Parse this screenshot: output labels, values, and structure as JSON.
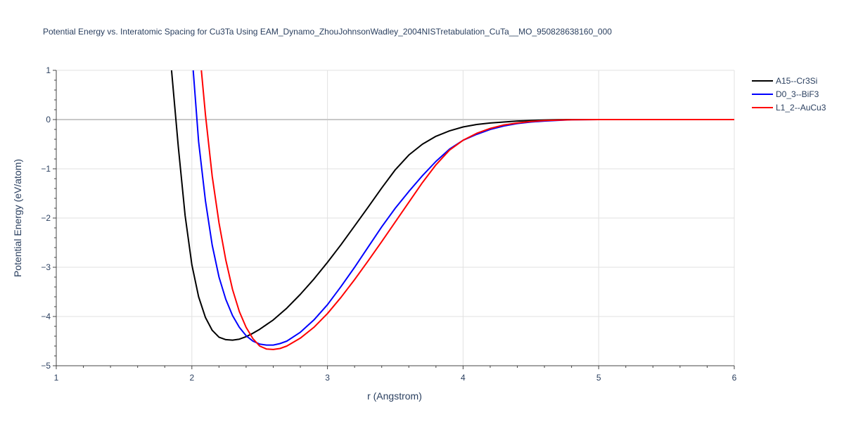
{
  "chart_data": {
    "type": "line",
    "title": "Potential Energy vs. Interatomic Spacing for Cu3Ta Using EAM_Dynamo_ZhouJohnsonWadley_2004NISTretabulation_CuTa__MO_950828638160_000",
    "xlabel": "r (Angstrom)",
    "ylabel": "Potential Energy (eV/atom)",
    "xlim": [
      1,
      6
    ],
    "ylim": [
      -5,
      1
    ],
    "xticks": [
      1,
      2,
      3,
      4,
      5,
      6
    ],
    "yticks": [
      1,
      0,
      -1,
      -2,
      -3,
      -4,
      -5
    ],
    "xtick_labels": [
      "1",
      "2",
      "3",
      "4",
      "5",
      "6"
    ],
    "ytick_labels": [
      "1",
      "0",
      "−1",
      "−2",
      "−3",
      "−4",
      "−5"
    ],
    "grid": true,
    "legend_position": "top-right",
    "series": [
      {
        "name": "A15--Cr3Si",
        "color": "#000000",
        "x": [
          1.85,
          1.9,
          1.95,
          2.0,
          2.05,
          2.1,
          2.15,
          2.2,
          2.25,
          2.3,
          2.35,
          2.4,
          2.45,
          2.5,
          2.6,
          2.7,
          2.8,
          2.9,
          3.0,
          3.1,
          3.2,
          3.3,
          3.4,
          3.5,
          3.6,
          3.7,
          3.8,
          3.9,
          4.0,
          4.1,
          4.2,
          4.3,
          4.4,
          4.5,
          4.6,
          4.7,
          4.8,
          5.0,
          5.5,
          6.0
        ],
        "y": [
          1.0,
          -0.55,
          -1.95,
          -2.95,
          -3.6,
          -4.02,
          -4.28,
          -4.42,
          -4.47,
          -4.48,
          -4.46,
          -4.41,
          -4.34,
          -4.26,
          -4.07,
          -3.83,
          -3.55,
          -3.24,
          -2.9,
          -2.54,
          -2.16,
          -1.78,
          -1.39,
          -1.02,
          -0.72,
          -0.5,
          -0.34,
          -0.23,
          -0.15,
          -0.1,
          -0.07,
          -0.05,
          -0.03,
          -0.02,
          -0.01,
          -0.005,
          0.0,
          0.0,
          0.0,
          0.0
        ]
      },
      {
        "name": "D0_3--BiF3",
        "color": "#0000ff",
        "x": [
          2.01,
          2.05,
          2.1,
          2.15,
          2.2,
          2.25,
          2.3,
          2.35,
          2.4,
          2.45,
          2.5,
          2.55,
          2.6,
          2.65,
          2.7,
          2.8,
          2.9,
          3.0,
          3.1,
          3.2,
          3.3,
          3.4,
          3.5,
          3.6,
          3.7,
          3.8,
          3.9,
          4.0,
          4.1,
          4.2,
          4.3,
          4.4,
          4.5,
          4.6,
          4.7,
          4.8,
          5.0,
          5.5,
          6.0
        ],
        "y": [
          1.0,
          -0.45,
          -1.65,
          -2.55,
          -3.2,
          -3.65,
          -3.98,
          -4.22,
          -4.39,
          -4.5,
          -4.56,
          -4.58,
          -4.58,
          -4.55,
          -4.5,
          -4.32,
          -4.07,
          -3.76,
          -3.39,
          -3.0,
          -2.59,
          -2.18,
          -1.8,
          -1.46,
          -1.14,
          -0.85,
          -0.6,
          -0.42,
          -0.3,
          -0.2,
          -0.13,
          -0.08,
          -0.05,
          -0.03,
          -0.015,
          -0.005,
          0.0,
          0.0,
          0.0
        ]
      },
      {
        "name": "L1_2--AuCu3",
        "color": "#ff0000",
        "x": [
          2.07,
          2.1,
          2.15,
          2.2,
          2.25,
          2.3,
          2.35,
          2.4,
          2.45,
          2.5,
          2.55,
          2.6,
          2.65,
          2.7,
          2.8,
          2.9,
          3.0,
          3.1,
          3.2,
          3.3,
          3.4,
          3.5,
          3.6,
          3.7,
          3.8,
          3.9,
          4.0,
          4.1,
          4.2,
          4.3,
          4.4,
          4.5,
          4.6,
          4.7,
          4.8,
          5.0,
          5.5,
          6.0
        ],
        "y": [
          1.0,
          0.1,
          -1.15,
          -2.1,
          -2.85,
          -3.45,
          -3.9,
          -4.22,
          -4.45,
          -4.6,
          -4.66,
          -4.67,
          -4.65,
          -4.6,
          -4.44,
          -4.22,
          -3.94,
          -3.61,
          -3.25,
          -2.87,
          -2.48,
          -2.08,
          -1.68,
          -1.28,
          -0.92,
          -0.62,
          -0.42,
          -0.28,
          -0.18,
          -0.11,
          -0.07,
          -0.04,
          -0.02,
          -0.01,
          -0.005,
          0.0,
          0.0,
          0.0
        ]
      }
    ]
  }
}
